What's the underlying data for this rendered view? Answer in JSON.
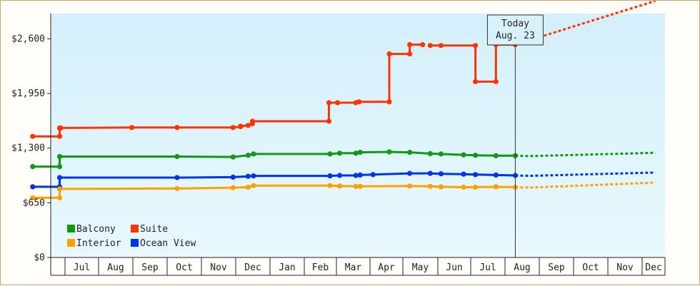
{
  "chart_data": {
    "type": "line",
    "y_axis": {
      "min": 0,
      "max": 2900,
      "ticks": [
        0,
        650,
        1300,
        1950,
        2600
      ],
      "tick_labels": [
        "$0",
        "$650",
        "$1,300",
        "$1,950",
        "$2,600"
      ]
    },
    "x_axis": {
      "start": "2023-06-01",
      "end": "2023-12-31",
      "month_labels": [
        {
          "label": "Jul",
          "date": "2023-07-01"
        },
        {
          "label": "Aug",
          "date": "2023-08-01"
        },
        {
          "label": "Sep",
          "date": "2023-09-01"
        },
        {
          "label": "Oct",
          "date": "2023-10-01"
        },
        {
          "label": "Nov",
          "date": "2023-11-01"
        },
        {
          "label": "Dec",
          "date": "2023-12-01"
        },
        {
          "label": "Jan",
          "date": "2024-01-01"
        },
        {
          "label": "Feb",
          "date": "2024-02-01"
        },
        {
          "label": "Mar",
          "date": "2024-03-01"
        },
        {
          "label": "Apr",
          "date": "2024-04-01"
        },
        {
          "label": "May",
          "date": "2024-05-01"
        },
        {
          "label": "Jun",
          "date": "2024-06-01"
        },
        {
          "label": "Jul",
          "date": "2024-07-01"
        },
        {
          "label": "Aug",
          "date": "2024-08-01"
        },
        {
          "label": "Sep",
          "date": "2024-09-01"
        },
        {
          "label": "Oct",
          "date": "2024-10-01"
        },
        {
          "label": "Nov",
          "date": "2024-11-01"
        },
        {
          "label": "Dec",
          "date": "2024-12-01"
        }
      ]
    },
    "today": {
      "title": "Today",
      "date_label": "Aug. 23"
    },
    "legend": {
      "placement": "bottom-left"
    },
    "series": [
      {
        "name": "Suite",
        "color": "#ff3300",
        "history": [
          [
            "2022-06-01",
            1440
          ],
          [
            "2022-06-26",
            1440
          ],
          [
            "2022-06-26",
            1540
          ],
          [
            "2022-06-27",
            1540
          ],
          [
            "2022-09-01",
            1545
          ],
          [
            "2022-10-13",
            1545
          ],
          [
            "2022-12-04",
            1545
          ],
          [
            "2022-12-11",
            1555
          ],
          [
            "2022-12-11",
            1560
          ],
          [
            "2022-12-18",
            1570
          ],
          [
            "2022-12-22",
            1590
          ],
          [
            "2022-12-22",
            1620
          ],
          [
            "2023-03-03",
            1620
          ],
          [
            "2023-03-03",
            1840
          ],
          [
            "2023-03-11",
            1840
          ],
          [
            "2023-03-28",
            1840
          ],
          [
            "2023-03-31",
            1850
          ],
          [
            "2023-04-28",
            1850
          ],
          [
            "2023-04-28",
            2420
          ],
          [
            "2023-05-17",
            2420
          ],
          [
            "2023-05-17",
            2530
          ],
          [
            "2023-05-29",
            2530
          ],
          null,
          [
            "2023-06-05",
            2520
          ],
          [
            "2023-06-15",
            2520
          ],
          [
            "2023-07-17",
            2520
          ],
          [
            "2023-07-17",
            2090
          ],
          [
            "2023-08-05",
            2090
          ],
          [
            "2023-08-05",
            2530
          ],
          [
            "2023-08-23",
            2530
          ]
        ],
        "forecast": [
          [
            "2023-08-23",
            2530
          ],
          [
            "2023-12-31",
            3050
          ]
        ]
      },
      {
        "name": "Balcony",
        "color": "#119911",
        "history": [
          [
            "2022-06-01",
            1080
          ],
          [
            "2022-06-26",
            1080
          ],
          [
            "2022-06-26",
            1200
          ],
          [
            "2022-10-13",
            1200
          ],
          [
            "2022-12-04",
            1195
          ],
          [
            "2022-12-18",
            1215
          ],
          [
            "2022-12-23",
            1230
          ],
          [
            "2023-03-04",
            1230
          ],
          [
            "2023-03-13",
            1240
          ],
          [
            "2023-03-28",
            1240
          ],
          [
            "2023-04-01",
            1250
          ],
          [
            "2023-04-28",
            1255
          ],
          [
            "2023-05-17",
            1250
          ],
          [
            "2023-06-05",
            1235
          ],
          [
            "2023-06-15",
            1230
          ],
          [
            "2023-07-06",
            1220
          ],
          [
            "2023-07-17",
            1215
          ],
          [
            "2023-08-05",
            1210
          ],
          [
            "2023-08-23",
            1210
          ]
        ],
        "forecast": [
          [
            "2023-08-23",
            1210
          ],
          [
            "2023-09-05",
            1205
          ],
          [
            "2023-12-31",
            1245
          ]
        ]
      },
      {
        "name": "Ocean View",
        "color": "#0033ee",
        "history": [
          [
            "2022-06-01",
            840
          ],
          [
            "2022-06-26",
            840
          ],
          [
            "2022-06-26",
            950
          ],
          [
            "2022-10-13",
            950
          ],
          [
            "2022-12-04",
            955
          ],
          [
            "2022-12-18",
            965
          ],
          [
            "2022-12-23",
            970
          ],
          [
            "2023-03-04",
            970
          ],
          [
            "2023-03-13",
            975
          ],
          [
            "2023-03-28",
            975
          ],
          [
            "2023-04-01",
            980
          ],
          [
            "2023-04-13",
            985
          ],
          [
            "2023-05-17",
            1000
          ],
          [
            "2023-06-05",
            1000
          ],
          [
            "2023-06-15",
            995
          ],
          [
            "2023-07-06",
            990
          ],
          [
            "2023-07-17",
            985
          ],
          [
            "2023-08-05",
            980
          ],
          [
            "2023-08-23",
            975
          ]
        ],
        "forecast": [
          [
            "2023-08-23",
            975
          ],
          [
            "2023-09-05",
            970
          ],
          [
            "2023-12-31",
            1010
          ]
        ]
      },
      {
        "name": "Interior",
        "color": "#ffa000",
        "history": [
          [
            "2022-06-01",
            710
          ],
          [
            "2022-06-26",
            710
          ],
          [
            "2022-06-26",
            815
          ],
          [
            "2022-10-13",
            820
          ],
          [
            "2022-12-04",
            830
          ],
          [
            "2022-12-18",
            835
          ],
          [
            "2022-12-23",
            855
          ],
          [
            "2023-03-04",
            855
          ],
          [
            "2023-03-13",
            850
          ],
          [
            "2023-03-28",
            845
          ],
          [
            "2023-04-01",
            845
          ],
          [
            "2023-05-17",
            850
          ],
          [
            "2023-06-05",
            845
          ],
          [
            "2023-06-15",
            840
          ],
          [
            "2023-07-06",
            835
          ],
          [
            "2023-07-17",
            835
          ],
          [
            "2023-08-05",
            840
          ],
          [
            "2023-08-23",
            835
          ]
        ],
        "forecast": [
          [
            "2023-08-23",
            835
          ],
          [
            "2023-09-05",
            830
          ],
          [
            "2023-12-31",
            890
          ]
        ]
      }
    ],
    "colors": {
      "plot_bg_top": "#d4f0fb",
      "plot_bg_bottom": "#e8f8fd",
      "frame": "#e0a060"
    }
  }
}
